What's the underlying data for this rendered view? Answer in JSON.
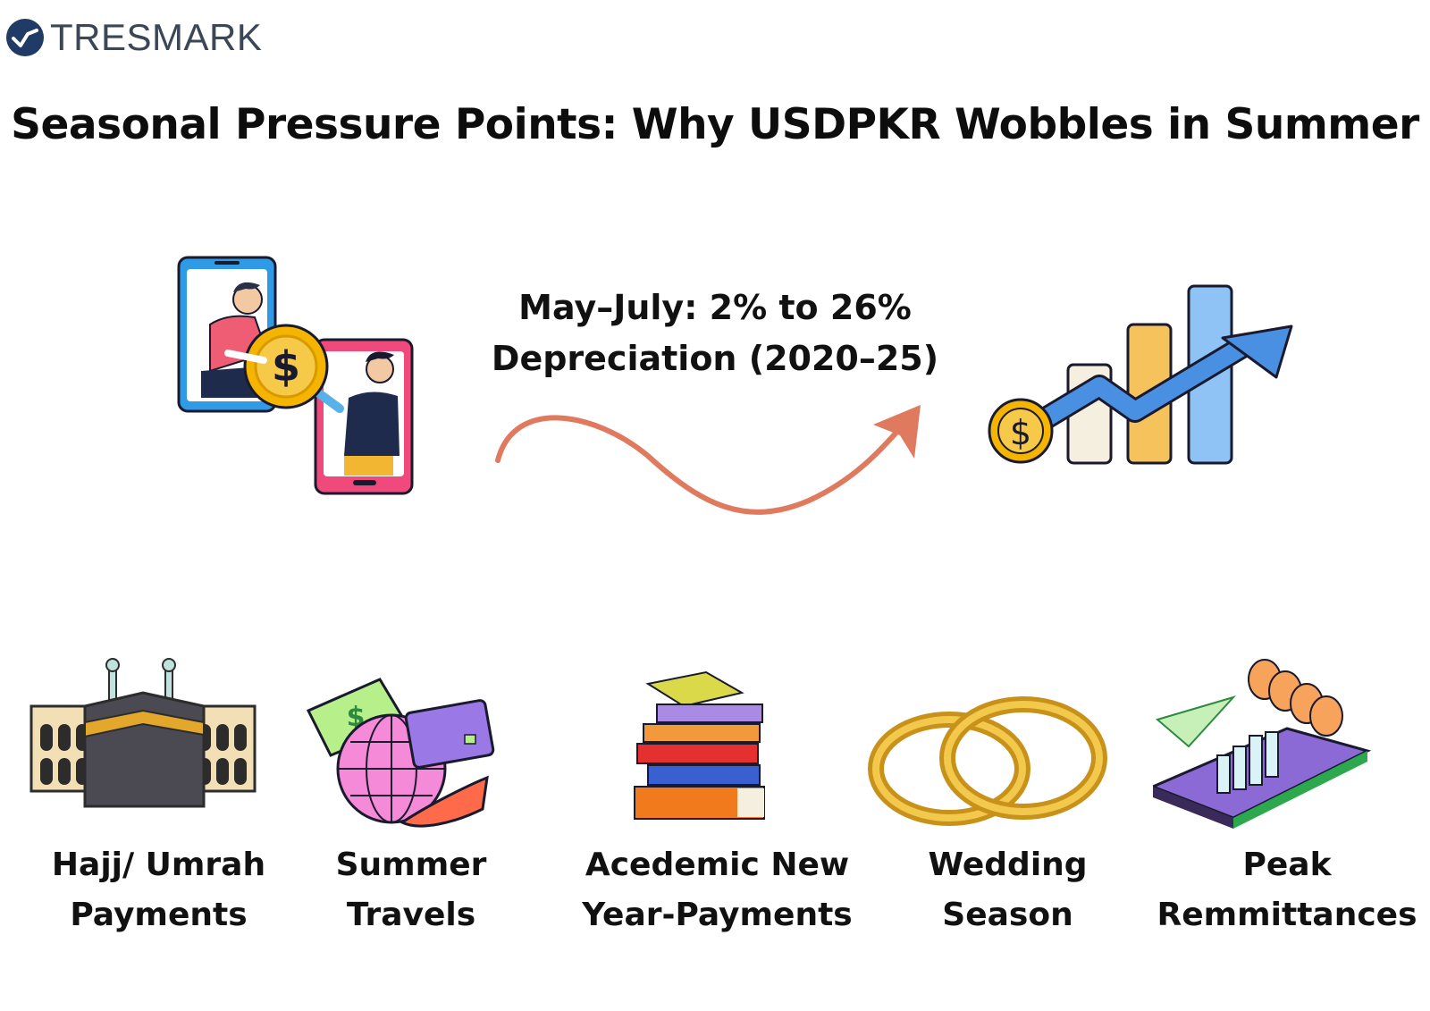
{
  "brand": {
    "name": "TRESMARK"
  },
  "title": "Seasonal Pressure Points: Why USDPKR Wobbles in Summer",
  "headline": {
    "line1": "May–July: 2% to 26%",
    "line2": "Depreciation (2020–25)"
  },
  "illustrations": {
    "left": "phone-money-transfer-icon",
    "arrow": "wavy-upward-arrow-icon",
    "right": "rising-bar-chart-icon"
  },
  "factors": [
    {
      "icon": "kaaba-icon",
      "line1": "Hajj/ Umrah",
      "line2": "Payments"
    },
    {
      "icon": "travel-globe-icon",
      "line1": "Summer",
      "line2": "Travels"
    },
    {
      "icon": "books-stack-icon",
      "line1": "Acedemic New",
      "line2": "Year-Payments"
    },
    {
      "icon": "wedding-rings-icon",
      "line1": "Wedding",
      "line2": "Season"
    },
    {
      "icon": "remittance-phone-icon",
      "line1": "Peak",
      "line2": "Remmittances"
    }
  ],
  "colors": {
    "arrow": "#e07a5f",
    "chart_blue": "#4a90e2",
    "chart_orange": "#f6c25b",
    "coin_gold": "#f4c430",
    "brand_navy": "#1f3b66"
  }
}
